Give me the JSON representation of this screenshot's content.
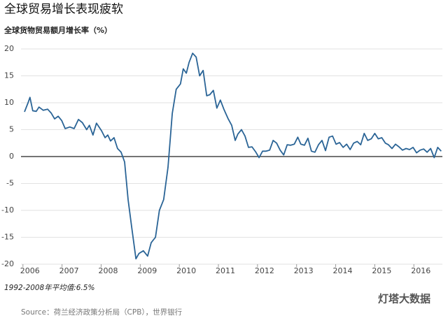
{
  "chart_data": {
    "type": "line",
    "title": "全球贸易增长表现疲软",
    "subtitle": "全球货物贸易额月增长率（%）",
    "note": "1992-2008年平均值:6.5%",
    "source": "Source：荷兰经济政策分析局（CPB），世界银行",
    "watermark": "灯塔大数据",
    "color": "#2a6496",
    "grid": true,
    "xlim": [
      2005.95,
      2016.73
    ],
    "xticks": [
      2006,
      2007,
      2008,
      2009,
      2010,
      2011,
      2012,
      2013,
      2014,
      2015,
      2016
    ],
    "ylim": [
      -20,
      20
    ],
    "yticks": [
      -20,
      -15,
      -10,
      -5,
      0,
      5,
      10,
      15,
      20
    ],
    "x": [
      2006.04,
      2006.13,
      2006.18,
      2006.25,
      2006.34,
      2006.41,
      2006.52,
      2006.63,
      2006.72,
      2006.81,
      2006.9,
      2006.99,
      2007.08,
      2007.2,
      2007.31,
      2007.42,
      2007.52,
      2007.63,
      2007.7,
      2007.79,
      2007.88,
      2008.01,
      2008.1,
      2008.17,
      2008.24,
      2008.33,
      2008.42,
      2008.51,
      2008.6,
      2008.69,
      2008.78,
      2008.89,
      2008.97,
      2009.08,
      2009.19,
      2009.28,
      2009.39,
      2009.49,
      2009.6,
      2009.71,
      2009.82,
      2009.92,
      2010.03,
      2010.1,
      2010.18,
      2010.25,
      2010.34,
      2010.43,
      2010.52,
      2010.61,
      2010.7,
      2010.78,
      2010.87,
      2010.96,
      2011.05,
      2011.14,
      2011.25,
      2011.34,
      2011.43,
      2011.5,
      2011.59,
      2011.68,
      2011.77,
      2011.86,
      2011.95,
      2012.04,
      2012.13,
      2012.22,
      2012.31,
      2012.4,
      2012.49,
      2012.58,
      2012.67,
      2012.76,
      2012.85,
      2012.94,
      2013.03,
      2013.11,
      2013.2,
      2013.29,
      2013.38,
      2013.47,
      2013.56,
      2013.65,
      2013.74,
      2013.83,
      2013.92,
      2014.01,
      2014.1,
      2014.19,
      2014.28,
      2014.37,
      2014.46,
      2014.55,
      2014.64,
      2014.73,
      2014.82,
      2014.91,
      2015.0,
      2015.09,
      2015.18,
      2015.27,
      2015.35,
      2015.44,
      2015.53,
      2015.62,
      2015.71,
      2015.8,
      2015.89,
      2015.98,
      2016.07,
      2016.16,
      2016.25,
      2016.34,
      2016.43,
      2016.52,
      2016.61,
      2016.7
    ],
    "values": [
      8.3,
      10,
      11,
      8.5,
      8.4,
      9.2,
      8.6,
      8.8,
      8.1,
      7,
      7.5,
      6.7,
      5.2,
      5.5,
      5.2,
      6.9,
      6.3,
      5,
      5.8,
      4,
      6.2,
      4.8,
      3.5,
      4,
      2.9,
      3.5,
      1.5,
      0.8,
      -1,
      -8,
      -13,
      -19,
      -18,
      -17.5,
      -18.5,
      -16,
      -15,
      -10,
      -8,
      -2,
      8,
      12.5,
      13.5,
      16.3,
      15.5,
      17.5,
      19.2,
      18.5,
      15,
      16,
      11.3,
      11.5,
      12.3,
      9,
      10.5,
      8.8,
      7,
      5.8,
      3,
      4.2,
      5,
      3.8,
      1.7,
      1.8,
      0.9,
      -0.2,
      1,
      1,
      1.2,
      3,
      2.5,
      1.2,
      0.3,
      2.2,
      2.1,
      2.3,
      3.6,
      2.3,
      2.1,
      3.4,
      1,
      0.8,
      2.2,
      3,
      1.1,
      3.6,
      3.8,
      2.3,
      2.6,
      1.7,
      2.3,
      1.3,
      2.5,
      2.8,
      2.2,
      4.3,
      3,
      3.3,
      4.3,
      3.3,
      3.5,
      2.5,
      2.2,
      1.5,
      2.3,
      1.8,
      1.2,
      1.5,
      1.3,
      1.7,
      0.7,
      1.2,
      1.4,
      0.8,
      1.5,
      -0.2,
      1.7,
      1
    ]
  }
}
